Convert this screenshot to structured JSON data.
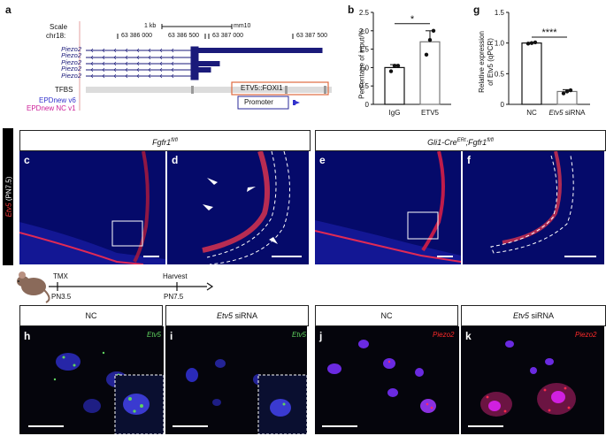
{
  "panels": {
    "a": "a",
    "b": "b",
    "c": "c",
    "d": "d",
    "e": "e",
    "f": "f",
    "g": "g",
    "h": "h",
    "i": "i",
    "j": "j",
    "k": "k"
  },
  "genome_browser": {
    "scale_label": "Scale",
    "chr_label": "chr18:",
    "scale_text": "1 kb",
    "assembly": "mm10",
    "coords": [
      "63 386 000",
      "63 386 500",
      "63 387 000",
      "63 387 500"
    ],
    "tracks": [
      "Piezo2",
      "Piezo2",
      "Piezo2",
      "Piezo2",
      "Piezo2"
    ],
    "tfbs_label": "TFBS",
    "tfbs_motif": "ETV5::FOXI1",
    "epdnew_v6": "EPDnew v6",
    "epdnew_nc": "EPDnew NC v1",
    "promoter_label": "Promoter",
    "colors": {
      "gene": "#1a1a7a",
      "epd_v6": "#3333cc",
      "epd_nc": "#cc1f99",
      "motif_box": "#e06a40"
    }
  },
  "chart_b": {
    "ylabel": "Percentage of input/%",
    "sig": "*",
    "chart_data": {
      "type": "bar",
      "categories": [
        "IgG",
        "ETV5"
      ],
      "values": [
        1.0,
        1.7
      ],
      "errors": [
        0.08,
        0.3
      ],
      "points": [
        [
          0.9,
          1.05,
          1.05
        ],
        [
          1.35,
          1.75,
          2.0
        ]
      ],
      "ylim": [
        0,
        2.5
      ],
      "yticks": [
        "0",
        "0.5",
        "1.0",
        "1.5",
        "2.0",
        "2.5"
      ]
    }
  },
  "chart_g": {
    "ylabel_line1": "Relative expression",
    "ylabel_line2": "of Etv5 (qPCR)",
    "sig": "****",
    "chart_data": {
      "type": "bar",
      "categories": [
        "NC",
        "Etv5 siRNA"
      ],
      "values": [
        1.0,
        0.21
      ],
      "errors": [
        0.01,
        0.03
      ],
      "points": [
        [
          0.99,
          1.0,
          1.01
        ],
        [
          0.18,
          0.21,
          0.23
        ]
      ],
      "ylim": [
        0,
        1.5
      ],
      "yticks": [
        "0",
        "0.5",
        "1.0",
        "1.5"
      ]
    }
  },
  "row2": {
    "side_label_gene": "Etv5",
    "side_label_rest": " (PN7.5)",
    "header_left": "Fgfr1",
    "header_left_sup": "fl/fl",
    "header_right_a": "Gli1-Cre",
    "header_right_a_sup": "ERt",
    "header_right_b": ";Fgfr1",
    "header_right_b_sup": "fl/fl"
  },
  "timeline": {
    "tmx": "TMX",
    "pn35": "PN3.5",
    "harvest": "Harvest",
    "pn75": "PN7.5"
  },
  "row3": {
    "headers": [
      "NC",
      "Etv5 siRNA",
      "NC",
      "Etv5 siRNA"
    ],
    "header_italic_part": "Etv5",
    "header_plain_part": " siRNA",
    "probe_h": "Etv5",
    "probe_i": "Etv5",
    "probe_j": "Piezo2",
    "probe_k": "Piezo2",
    "probe_colors": {
      "etv5": "#5fd35f",
      "piezo2": "#ff2a2a"
    }
  }
}
